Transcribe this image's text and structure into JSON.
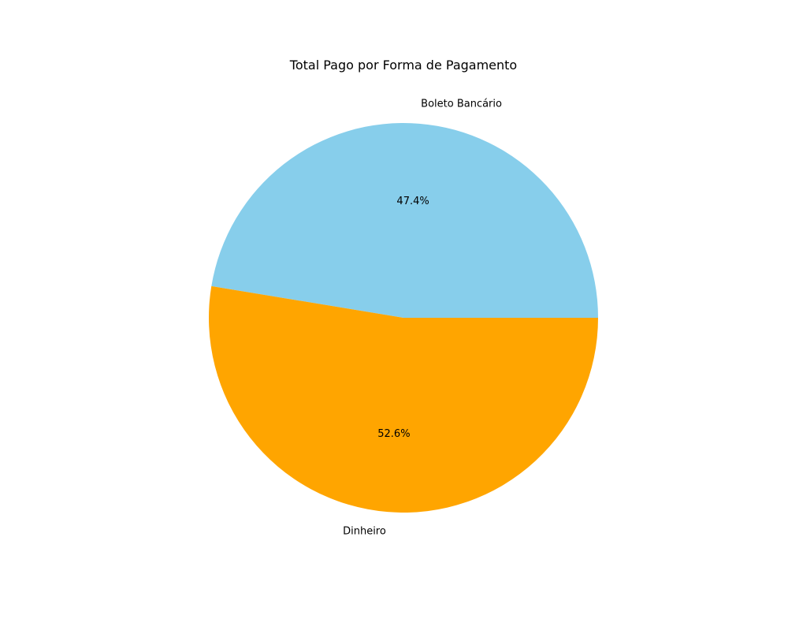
{
  "chart_data": {
    "type": "pie",
    "title": "Total Pago por Forma de Pagamento",
    "slices": [
      {
        "label": "Boleto Bancário",
        "value": 47.4,
        "pct_label": "47.4%",
        "color": "#87CEEB"
      },
      {
        "label": "Dinheiro",
        "value": 52.6,
        "pct_label": "52.6%",
        "color": "#FFA500"
      }
    ],
    "start_angle_deg": 0,
    "direction": "counterclockwise",
    "legend": "none"
  }
}
